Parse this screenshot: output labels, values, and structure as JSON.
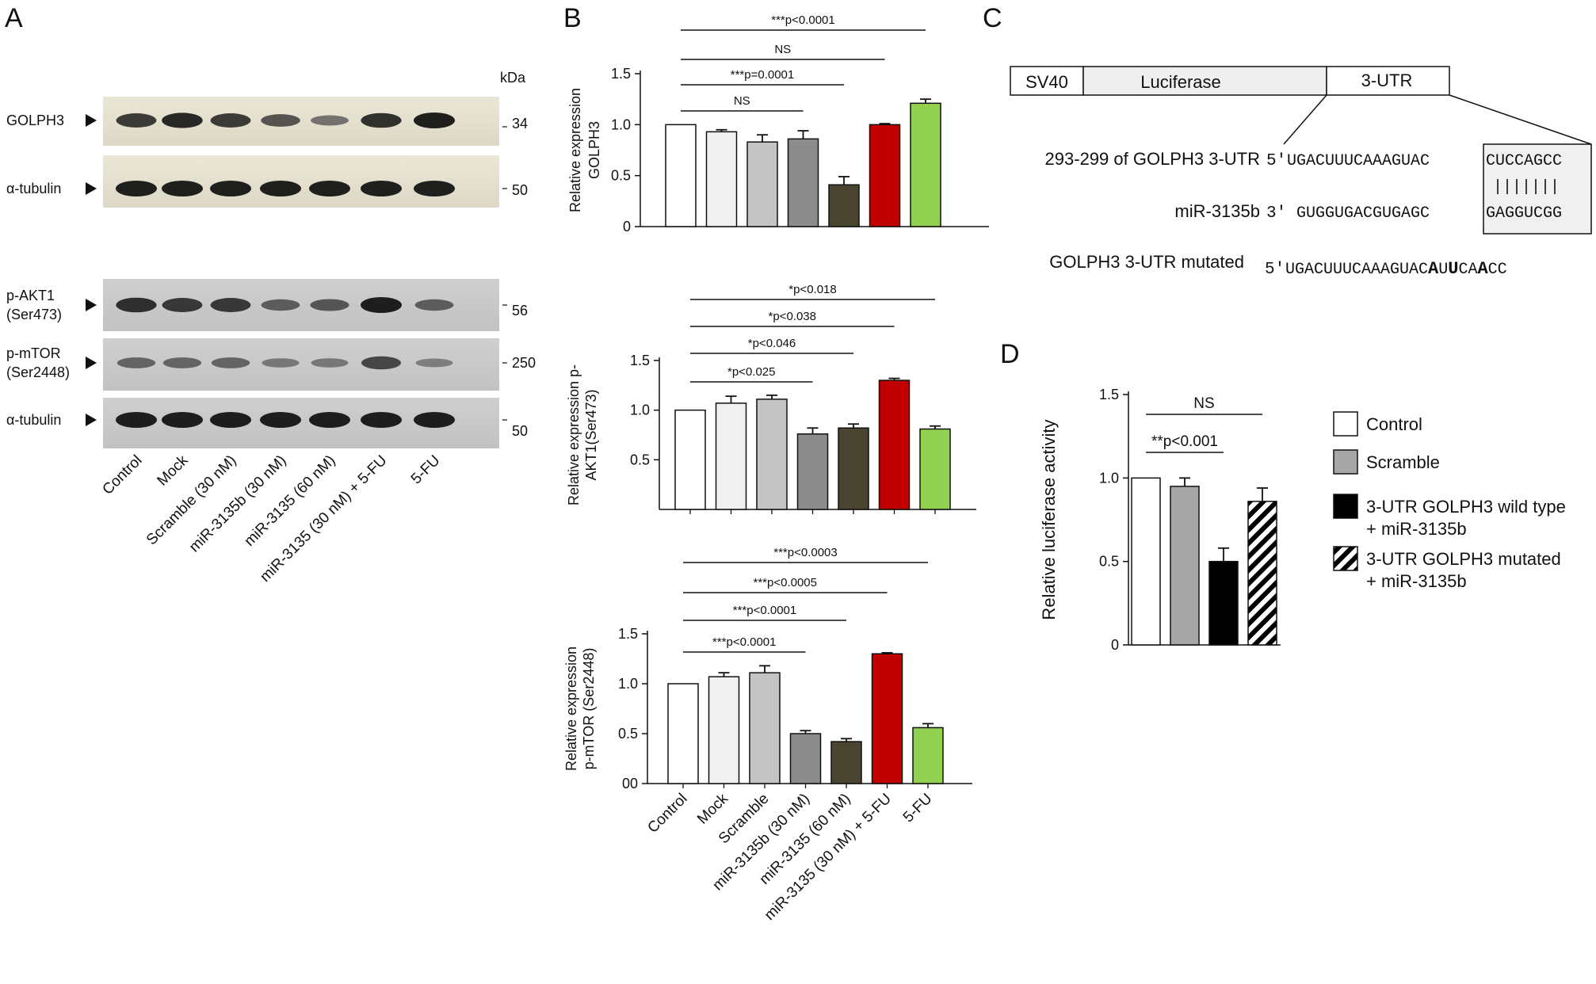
{
  "panel_letters": [
    "A",
    "B",
    "C",
    "D"
  ],
  "panel_a": {
    "kda": "kDa",
    "blots": [
      {
        "label": [
          "GOLPH3"
        ],
        "kda": "34",
        "intensity": [
          0.85,
          0.95,
          0.85,
          0.7,
          0.5,
          0.9,
          1.0
        ]
      },
      {
        "label": [
          "α-tubulin"
        ],
        "kda": "50",
        "intensity": [
          1,
          1,
          1,
          1,
          1,
          1,
          1
        ]
      },
      {
        "label": [
          "p-AKT1",
          "(Ser473)"
        ],
        "kda": "56",
        "intensity": [
          0.9,
          0.85,
          0.85,
          0.6,
          0.65,
          1.0,
          0.6
        ]
      },
      {
        "label": [
          "p-mTOR",
          "(Ser2448)"
        ],
        "kda": "250",
        "intensity": [
          0.55,
          0.55,
          0.55,
          0.4,
          0.4,
          0.75,
          0.35
        ]
      },
      {
        "label": [
          "α-tubulin"
        ],
        "kda": "50",
        "intensity": [
          1,
          1,
          1,
          1,
          1,
          1,
          1
        ]
      }
    ],
    "lanes": [
      "Control",
      "Mock",
      "Scramble (30 nM)",
      "miR-3135b (30 nM)",
      "miR-3135 (60 nM)",
      "miR-3135 (30 nM) + 5-FU",
      "5-FU"
    ]
  },
  "chart_data": [
    {
      "type": "bar",
      "panel": "B-top",
      "ylabel": [
        "Relative expression",
        "GOLPH3"
      ],
      "ylim": [
        0,
        1.5
      ],
      "yticks": [
        "0",
        "0.5",
        "1.0",
        "1.5"
      ],
      "values": [
        1.0,
        0.93,
        0.83,
        0.86,
        0.41,
        1.0,
        1.21
      ],
      "errors": [
        0,
        0.02,
        0.07,
        0.08,
        0.08,
        0.01,
        0.04
      ],
      "colors": [
        "#ffffff",
        "#f0f0f0",
        "#c4c4c4",
        "#8c8c8c",
        "#4a4530",
        "#c00000",
        "#92d050"
      ],
      "brackets": [
        {
          "text": "NS",
          "to": 3
        },
        {
          "text": "***p=0.0001",
          "to": 4
        },
        {
          "text": "NS",
          "to": 5
        },
        {
          "text": "***p<0.0001",
          "to": 6
        }
      ]
    },
    {
      "type": "bar",
      "panel": "B-middle",
      "ylabel": [
        "Relative expression p-",
        "AKT1(Ser473)"
      ],
      "ylim": [
        0,
        1.5
      ],
      "yticks": [
        "0.5",
        "1.0",
        "1.5"
      ],
      "values": [
        1.0,
        1.07,
        1.11,
        0.76,
        0.82,
        1.3,
        0.81
      ],
      "errors": [
        0,
        0.07,
        0.04,
        0.06,
        0.04,
        0.02,
        0.03
      ],
      "colors": [
        "#ffffff",
        "#f0f0f0",
        "#c4c4c4",
        "#8c8c8c",
        "#4a4530",
        "#c00000",
        "#92d050"
      ],
      "brackets": [
        {
          "text": "*p<0.025",
          "to": 3
        },
        {
          "text": "*p<0.046",
          "to": 4
        },
        {
          "text": "*p<0.038",
          "to": 5
        },
        {
          "text": "*p<0.018",
          "to": 6
        }
      ]
    },
    {
      "type": "bar",
      "panel": "B-bottom",
      "ylabel": [
        "Relative expression",
        "p-mTOR (Ser2448)"
      ],
      "ylim": [
        0,
        1.5
      ],
      "yticks": [
        "00",
        "0.5",
        "1.0",
        "1.5"
      ],
      "categories": [
        "Control",
        "Mock",
        "Scramble",
        "miR-3135b (30 nM)",
        "miR-3135 (60 nM)",
        "miR-3135 (30 nM) + 5-FU",
        "5-FU"
      ],
      "values": [
        1.0,
        1.07,
        1.11,
        0.5,
        0.42,
        1.3,
        0.56
      ],
      "errors": [
        0,
        0.04,
        0.07,
        0.03,
        0.03,
        0.01,
        0.04
      ],
      "colors": [
        "#ffffff",
        "#f0f0f0",
        "#c4c4c4",
        "#8c8c8c",
        "#4a4530",
        "#c00000",
        "#92d050"
      ],
      "brackets": [
        {
          "text": "***p<0.0001",
          "to": 3
        },
        {
          "text": "***p<0.0001",
          "to": 4
        },
        {
          "text": "***p<0.0005",
          "to": 5
        },
        {
          "text": "***p<0.0003",
          "to": 6
        }
      ]
    },
    {
      "type": "bar",
      "panel": "D",
      "ylabel": [
        "Relative luciferase activity"
      ],
      "ylim": [
        0,
        1.5
      ],
      "yticks": [
        "0",
        "0.5",
        "1.0",
        "1.5"
      ],
      "categories": [
        "Control",
        "Scramble",
        "3-UTR GOLPH3 wild type + miR-3135b",
        "3-UTR GOLPH3 mutated + miR-3135b"
      ],
      "values": [
        1.0,
        0.95,
        0.5,
        0.86
      ],
      "errors": [
        0,
        0.05,
        0.08,
        0.08
      ],
      "colors": [
        "#ffffff",
        "#a6a6a6",
        "#000000",
        "hatch"
      ],
      "brackets": [
        {
          "text": "**p<0.001",
          "to": 2
        },
        {
          "text": "NS",
          "to": 3
        }
      ],
      "legend": [
        {
          "lines": [
            "Control"
          ],
          "color": "#ffffff"
        },
        {
          "lines": [
            "Scramble"
          ],
          "color": "#a6a6a6"
        },
        {
          "lines": [
            "3-UTR GOLPH3 wild type",
            "+ miR-3135b"
          ],
          "color": "#000000"
        },
        {
          "lines": [
            "3-UTR GOLPH3 mutated",
            "+ miR-3135b"
          ],
          "color": "hatch"
        }
      ]
    }
  ],
  "panel_c": {
    "construct": [
      "SV40",
      "Luciferase",
      "3-UTR"
    ],
    "row1_label": "293-299 of GOLPH3 3-UTR",
    "row1_prefix": "5'",
    "row1_seq": "UGACUUUCAAAGUAC",
    "row1_site": "CUCCAGCC",
    "pairs": "|||||||",
    "row2_label": "miR-3135b",
    "row2_prefix": "3'",
    "row2_seq": "GUGGUGACGUGAGC",
    "row2_site": "GAGGUCGG",
    "row3_label": "GOLPH3 3-UTR mutated",
    "row3_prefix": "5'",
    "row3_parts": [
      {
        "t": "UGACUUUCAAAGUAC",
        "b": false
      },
      {
        "t": "A",
        "b": true
      },
      {
        "t": "U",
        "b": false
      },
      {
        "t": "U",
        "b": true
      },
      {
        "t": "CA",
        "b": false
      },
      {
        "t": "A",
        "b": true
      },
      {
        "t": "CC",
        "b": false
      }
    ]
  }
}
